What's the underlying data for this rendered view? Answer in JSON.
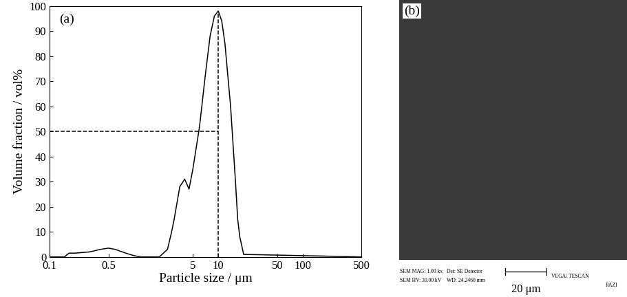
{
  "chart_data": {
    "type": "line",
    "panel_label": "(a)",
    "x_label": "Particle size / μm",
    "y_label": "Volume fraction / vol%",
    "log": "x",
    "xlim": [
      0.1,
      500
    ],
    "xticks": [
      0.1,
      0.5,
      5,
      10,
      50,
      100,
      500
    ],
    "ylim": [
      0,
      100
    ],
    "yticks": [
      0,
      10,
      20,
      30,
      40,
      50,
      60,
      70,
      80,
      90,
      100
    ],
    "grid": false,
    "series": [
      {
        "color": "#000000",
        "line_style": "solid",
        "x": [
          0.1,
          0.15,
          0.17,
          0.2,
          0.3,
          0.4,
          0.5,
          0.6,
          0.8,
          1.0,
          1.2,
          2.0,
          2.5,
          2.8,
          3.0,
          3.5,
          4.0,
          4.5,
          5.0,
          6.0,
          7.0,
          8.0,
          9.0,
          10.0,
          11.0,
          12.0,
          14.0,
          16.0,
          17.0,
          18.0,
          20.0,
          500
        ],
        "values": [
          0,
          0,
          1.5,
          1.5,
          2,
          3,
          3.5,
          3,
          1.5,
          0.5,
          0,
          0,
          3,
          10,
          15,
          28,
          31,
          27,
          35,
          52,
          72,
          88,
          96,
          98,
          94,
          85,
          60,
          30,
          15,
          8,
          1,
          0
        ]
      },
      {
        "color": "#000000",
        "line_style": "dashed",
        "x": [
          0.1,
          10
        ],
        "values": [
          50,
          50
        ]
      },
      {
        "color": "#000000",
        "line_style": "dashed",
        "x": [
          10,
          10
        ],
        "values": [
          0,
          98
        ]
      }
    ]
  },
  "image_panel": {
    "panel_label": "(b)",
    "info": [
      "SEM MAG: 1.00 kx",
      "SEM HV: 30.00 kV",
      "Det: SE Detector",
      "WD: 24.2460 mm"
    ],
    "scale_bar": "20 μm",
    "brand": "VEGA\\ TESCAN",
    "logo": "RAZI"
  }
}
